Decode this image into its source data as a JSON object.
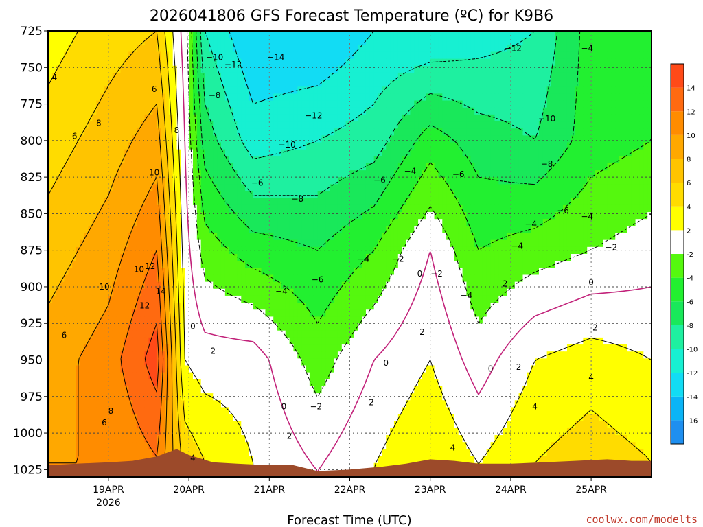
{
  "title": "2026041806 GFS Forecast Temperature (ºC) for K9B6",
  "x_axis_title": "Forecast Time (UTC)",
  "credit": "coolwx.com/modelts",
  "colors": {
    "ground": "#9c4a2a",
    "zero_line": "#c2227a",
    "grid": "#444444"
  },
  "chart_data": {
    "type": "heatmap",
    "title": "2026041806 GFS Forecast Temperature (ºC) for K9B6",
    "xlabel": "Forecast Time (UTC)",
    "ylabel": "",
    "y_axis": {
      "inverted": true,
      "ylim": [
        1030,
        725
      ],
      "ticks": [
        "725",
        "750",
        "775",
        "800",
        "825",
        "850",
        "875",
        "900",
        "925",
        "950",
        "975",
        "1000",
        "1025"
      ]
    },
    "x_axis": {
      "xlim": [
        18.25,
        25.75
      ],
      "ticks": [
        {
          "value": 19,
          "label": "19APR",
          "sublabel": "2026"
        },
        {
          "value": 20,
          "label": "20APR",
          "sublabel": ""
        },
        {
          "value": 21,
          "label": "21APR",
          "sublabel": ""
        },
        {
          "value": 22,
          "label": "22APR",
          "sublabel": ""
        },
        {
          "value": 23,
          "label": "23APR",
          "sublabel": ""
        },
        {
          "value": 24,
          "label": "24APR",
          "sublabel": ""
        },
        {
          "value": 25,
          "label": "25APR",
          "sublabel": ""
        }
      ]
    },
    "grid": true,
    "colorbar": {
      "placement": "right",
      "labels": [
        "-16",
        "-14",
        "-12",
        "-10",
        "-8",
        "-6",
        "-4",
        "-2",
        "2",
        "4",
        "6",
        "8",
        "10",
        "12",
        "14"
      ],
      "bins": [
        {
          "from": -18,
          "to": -16,
          "color": "#1e8ff0"
        },
        {
          "from": -16,
          "to": -14,
          "color": "#0ab4f6"
        },
        {
          "from": -14,
          "to": -12,
          "color": "#12dcf4"
        },
        {
          "from": -12,
          "to": -10,
          "color": "#17f0d2"
        },
        {
          "from": -10,
          "to": -8,
          "color": "#1ef0a0"
        },
        {
          "from": -8,
          "to": -6,
          "color": "#19e85a"
        },
        {
          "from": -6,
          "to": -4,
          "color": "#22f030"
        },
        {
          "from": -4,
          "to": -2,
          "color": "#55f80e"
        },
        {
          "from": -2,
          "to": 2,
          "color": "#ffffff"
        },
        {
          "from": 2,
          "to": 4,
          "color": "#ffff00"
        },
        {
          "from": 4,
          "to": 6,
          "color": "#ffdc00"
        },
        {
          "from": 6,
          "to": 8,
          "color": "#ffc400"
        },
        {
          "from": 8,
          "to": 10,
          "color": "#ffa800"
        },
        {
          "from": 10,
          "to": 12,
          "color": "#ff8c00"
        },
        {
          "from": 12,
          "to": 14,
          "color": "#ff6a10"
        },
        {
          "from": 14,
          "to": 16,
          "color": "#ff4a18"
        }
      ]
    },
    "surface_pressure": [
      [
        18.25,
        1022
      ],
      [
        18.6,
        1021
      ],
      [
        19.0,
        1020
      ],
      [
        19.3,
        1019
      ],
      [
        19.6,
        1016
      ],
      [
        19.85,
        1011
      ],
      [
        20.0,
        1015
      ],
      [
        20.3,
        1020
      ],
      [
        20.6,
        1021
      ],
      [
        21.0,
        1022
      ],
      [
        21.3,
        1022
      ],
      [
        21.6,
        1026
      ],
      [
        22.0,
        1025
      ],
      [
        22.4,
        1023
      ],
      [
        22.7,
        1021
      ],
      [
        23.0,
        1018
      ],
      [
        23.3,
        1019
      ],
      [
        23.6,
        1021
      ],
      [
        24.0,
        1021
      ],
      [
        24.4,
        1020
      ],
      [
        24.8,
        1019
      ],
      [
        25.2,
        1018
      ],
      [
        25.5,
        1019
      ],
      [
        25.75,
        1019
      ]
    ],
    "temperature_profiles": [
      {
        "time": 18.25,
        "levels": [
          725,
          800,
          875,
          950,
          1020
        ],
        "temps": [
          3,
          5,
          7,
          9,
          10
        ]
      },
      {
        "time": 19.0,
        "levels": [
          725,
          800,
          875,
          950,
          1020
        ],
        "temps": [
          5,
          7,
          9,
          11,
          10
        ]
      },
      {
        "time": 19.6,
        "levels": [
          725,
          800,
          875,
          950,
          1016
        ],
        "temps": [
          6,
          9,
          12,
          15,
          12
        ]
      },
      {
        "time": 19.95,
        "levels": [
          725,
          800,
          875,
          950,
          1013
        ],
        "temps": [
          -1,
          0,
          1,
          2,
          5
        ]
      },
      {
        "time": 20.2,
        "levels": [
          725,
          800,
          875,
          950,
          1019
        ],
        "temps": [
          -10,
          -7,
          -3,
          1,
          4
        ]
      },
      {
        "time": 20.8,
        "levels": [
          725,
          800,
          875,
          950,
          1021
        ],
        "temps": [
          -14,
          -11,
          -5,
          1,
          2
        ]
      },
      {
        "time": 21.6,
        "levels": [
          725,
          800,
          875,
          950,
          1026
        ],
        "temps": [
          -14,
          -10,
          -6,
          -3,
          0
        ]
      },
      {
        "time": 22.3,
        "levels": [
          725,
          800,
          875,
          950,
          1023
        ],
        "temps": [
          -12,
          -9,
          -4,
          0,
          2
        ]
      },
      {
        "time": 23.0,
        "levels": [
          725,
          800,
          875,
          950,
          1018
        ],
        "temps": [
          -12,
          -5,
          0,
          2,
          4
        ]
      },
      {
        "time": 23.6,
        "levels": [
          725,
          800,
          875,
          950,
          1021
        ],
        "temps": [
          -11,
          -7,
          -4,
          -1,
          2
        ]
      },
      {
        "time": 24.3,
        "levels": [
          725,
          800,
          875,
          950,
          1020
        ],
        "temps": [
          -10,
          -8,
          -3,
          2,
          4
        ]
      },
      {
        "time": 25.0,
        "levels": [
          725,
          800,
          875,
          950,
          1018
        ],
        "temps": [
          -5,
          -5,
          -2,
          3,
          5
        ]
      },
      {
        "time": 25.75,
        "levels": [
          725,
          800,
          875,
          950,
          1019
        ],
        "temps": [
          -5,
          -4,
          -1,
          2,
          4
        ]
      }
    ],
    "contour_labels": [
      {
        "text": "4",
        "time": 18.33,
        "p": 757
      },
      {
        "text": "6",
        "time": 18.58,
        "p": 797
      },
      {
        "text": "8",
        "time": 18.88,
        "p": 788
      },
      {
        "text": "6",
        "time": 19.57,
        "p": 765
      },
      {
        "text": "8",
        "time": 19.85,
        "p": 793
      },
      {
        "text": "10",
        "time": 19.57,
        "p": 822
      },
      {
        "text": "10",
        "time": 19.38,
        "p": 888
      },
      {
        "text": "12",
        "time": 19.52,
        "p": 886
      },
      {
        "text": "10",
        "time": 18.95,
        "p": 900
      },
      {
        "text": "14",
        "time": 19.65,
        "p": 903
      },
      {
        "text": "12",
        "time": 19.45,
        "p": 913
      },
      {
        "text": "6",
        "time": 18.45,
        "p": 933
      },
      {
        "text": "8",
        "time": 19.03,
        "p": 985
      },
      {
        "text": "6",
        "time": 18.95,
        "p": 993
      },
      {
        "text": "0",
        "time": 20.05,
        "p": 927
      },
      {
        "text": "2",
        "time": 20.3,
        "p": 944
      },
      {
        "text": "4",
        "time": 20.05,
        "p": 1017
      },
      {
        "text": "−10",
        "time": 20.32,
        "p": 743
      },
      {
        "text": "−12",
        "time": 20.55,
        "p": 748
      },
      {
        "text": "−14",
        "time": 21.08,
        "p": 743
      },
      {
        "text": "−8",
        "time": 20.32,
        "p": 769
      },
      {
        "text": "−12",
        "time": 21.55,
        "p": 783
      },
      {
        "text": "−10",
        "time": 21.22,
        "p": 803
      },
      {
        "text": "−6",
        "time": 20.85,
        "p": 829
      },
      {
        "text": "−8",
        "time": 21.35,
        "p": 840
      },
      {
        "text": "−6",
        "time": 21.6,
        "p": 895
      },
      {
        "text": "−4",
        "time": 21.15,
        "p": 903
      },
      {
        "text": "0",
        "time": 21.18,
        "p": 982
      },
      {
        "text": "−2",
        "time": 21.58,
        "p": 982
      },
      {
        "text": "2",
        "time": 21.25,
        "p": 1002
      },
      {
        "text": "−6",
        "time": 22.37,
        "p": 827
      },
      {
        "text": "−4",
        "time": 22.17,
        "p": 881
      },
      {
        "text": "−2",
        "time": 22.6,
        "p": 881
      },
      {
        "text": "2",
        "time": 22.27,
        "p": 979
      },
      {
        "text": "0",
        "time": 22.45,
        "p": 952
      },
      {
        "text": "−4",
        "time": 22.75,
        "p": 821
      },
      {
        "text": "0",
        "time": 22.87,
        "p": 891
      },
      {
        "text": "−2",
        "time": 23.08,
        "p": 891
      },
      {
        "text": "2",
        "time": 22.9,
        "p": 931
      },
      {
        "text": "4",
        "time": 23.28,
        "p": 1010
      },
      {
        "text": "−6",
        "time": 23.35,
        "p": 823
      },
      {
        "text": "−4",
        "time": 23.45,
        "p": 906
      },
      {
        "text": "−12",
        "time": 24.03,
        "p": 737
      },
      {
        "text": "−10",
        "time": 24.45,
        "p": 785
      },
      {
        "text": "−8",
        "time": 24.45,
        "p": 816
      },
      {
        "text": "−6",
        "time": 24.65,
        "p": 848
      },
      {
        "text": "−4",
        "time": 24.25,
        "p": 857
      },
      {
        "text": "−4",
        "time": 24.08,
        "p": 872
      },
      {
        "text": "2",
        "time": 23.93,
        "p": 898
      },
      {
        "text": "0",
        "time": 23.75,
        "p": 956
      },
      {
        "text": "2",
        "time": 24.1,
        "p": 955
      },
      {
        "text": "4",
        "time": 24.3,
        "p": 982
      },
      {
        "text": "−4",
        "time": 24.95,
        "p": 737
      },
      {
        "text": "−4",
        "time": 24.95,
        "p": 852
      },
      {
        "text": "−2",
        "time": 25.25,
        "p": 873
      },
      {
        "text": "0",
        "time": 25.0,
        "p": 897
      },
      {
        "text": "2",
        "time": 25.05,
        "p": 928
      },
      {
        "text": "4",
        "time": 25.0,
        "p": 962
      }
    ]
  }
}
